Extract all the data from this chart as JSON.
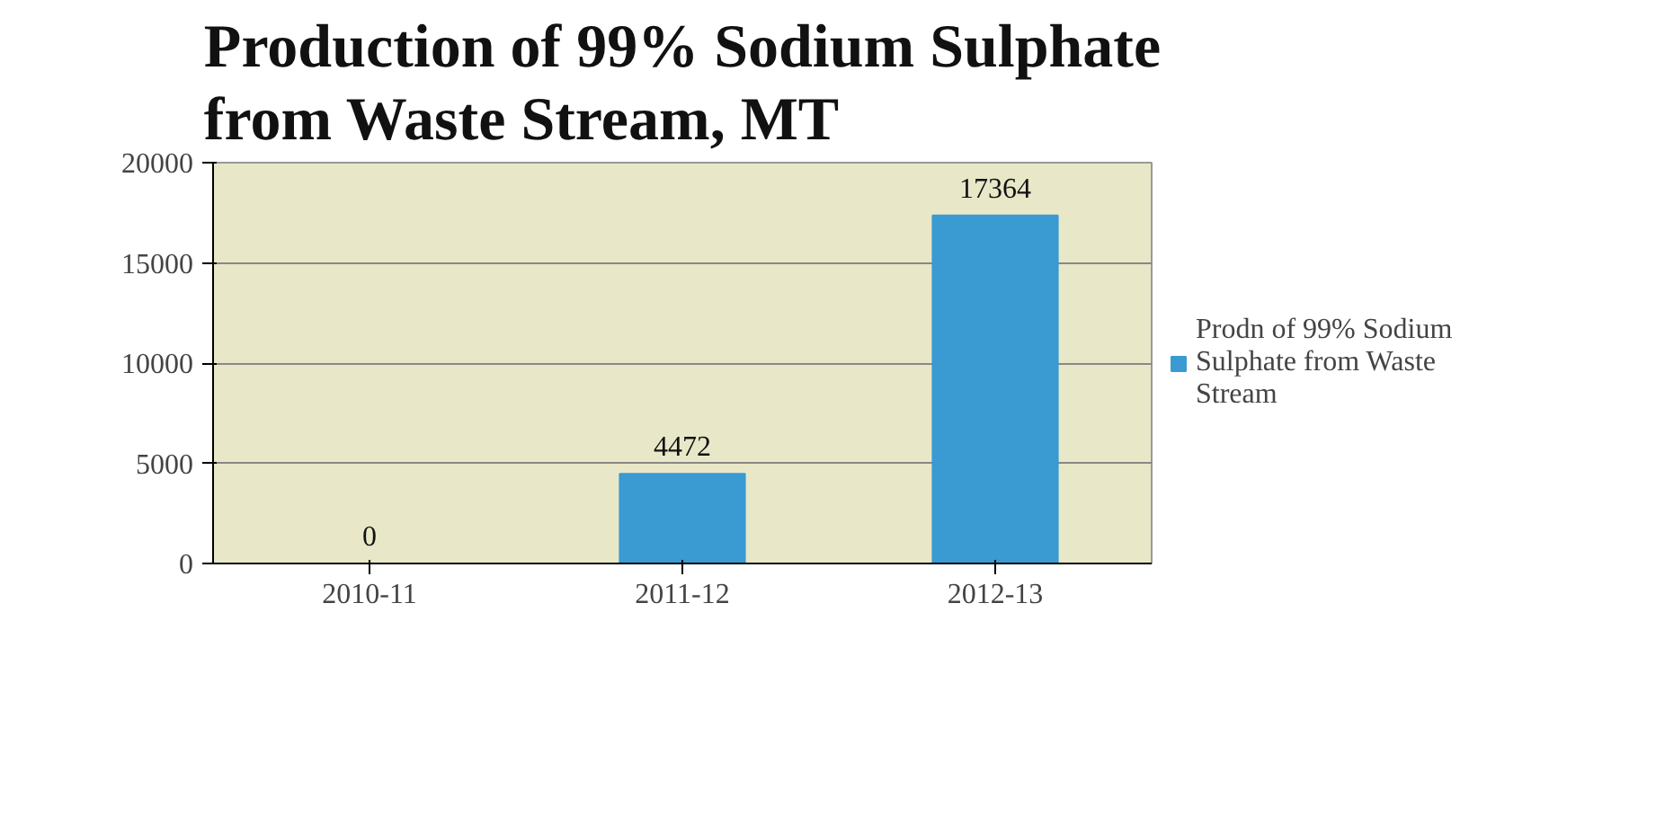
{
  "chart_data": {
    "type": "bar",
    "title": "Production of 99% Sodium Sulphate from Waste Stream, MT",
    "categories": [
      "2010-11",
      "2011-12",
      "2012-13"
    ],
    "series": [
      {
        "name": "Prodn of 99% Sodium Sulphate from Waste Stream",
        "color": "#3a9ad2",
        "values": [
          0,
          4472,
          17364
        ]
      }
    ],
    "ylim": [
      0,
      20000
    ],
    "yticks": [
      0,
      5000,
      10000,
      15000,
      20000
    ],
    "grid": "y",
    "legend": "right",
    "data_labels": true
  }
}
